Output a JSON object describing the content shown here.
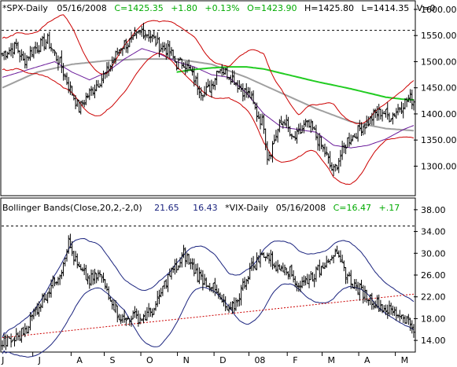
{
  "colors": {
    "price_bars": "#000000",
    "bollinger": "#cc0000",
    "ma_gray": "#a0a0a0",
    "ma_purple": "#6a1b9a",
    "ma_green": "#22cc22",
    "vix_band": "#1a237e",
    "green_text": "#00aa00",
    "dotted_red": "#cc0000",
    "frame": "#000000"
  },
  "top_header": {
    "symbol": "*SPX-Daily",
    "date": "05/16/2008",
    "close": "C=1425.35",
    "change": "+1.80",
    "pct": "+0.13%",
    "open": "O=1423.90",
    "high": "H=1425.80",
    "low": "L=1414.35",
    "volume": "V=0"
  },
  "bottom_header": {
    "indicator": "Bollinger Bands(Close,20,2,-2,0)",
    "upper_value": "21.65",
    "lower_value": "16.43",
    "symbol": "*VIX-Daily",
    "date": "05/16/2008",
    "close": "C=16.47",
    "change": "+.17"
  },
  "chart_data": [
    {
      "type": "ohlc",
      "title": "*SPX-Daily",
      "ylim": [
        1245,
        1615
      ],
      "y_ticks": [
        "1600.00",
        "1550.00",
        "1500.00",
        "1450.00",
        "1400.00",
        "1350.00",
        "1300.00"
      ],
      "y_tick_values": [
        1600,
        1550,
        1500,
        1450,
        1400,
        1350,
        1300
      ],
      "reference_line": 1560,
      "x_categories": [
        "J",
        "J",
        "A",
        "S",
        "O",
        "N",
        "D",
        "08",
        "F",
        "M",
        "A",
        "M"
      ],
      "x_positions": [
        0.5,
        21.5,
        43.5,
        62.5,
        83.5,
        104.5,
        125.5,
        145.5,
        167.5,
        187.5,
        208.5,
        229.5
      ],
      "close_anchors": [
        [
          0,
          1515
        ],
        [
          8,
          1530
        ],
        [
          12,
          1500
        ],
        [
          18,
          1525
        ],
        [
          26,
          1540
        ],
        [
          34,
          1490
        ],
        [
          38,
          1455
        ],
        [
          44,
          1410
        ],
        [
          50,
          1440
        ],
        [
          56,
          1465
        ],
        [
          60,
          1480
        ],
        [
          68,
          1530
        ],
        [
          75,
          1540
        ],
        [
          80,
          1560
        ],
        [
          85,
          1550
        ],
        [
          90,
          1530
        ],
        [
          96,
          1520
        ],
        [
          100,
          1495
        ],
        [
          104,
          1500
        ],
        [
          108,
          1480
        ],
        [
          112,
          1455
        ],
        [
          116,
          1440
        ],
        [
          120,
          1455
        ],
        [
          124,
          1490
        ],
        [
          128,
          1480
        ],
        [
          132,
          1470
        ],
        [
          138,
          1445
        ],
        [
          142,
          1435
        ],
        [
          146,
          1400
        ],
        [
          150,
          1380
        ],
        [
          152,
          1320
        ],
        [
          154,
          1330
        ],
        [
          158,
          1370
        ],
        [
          162,
          1390
        ],
        [
          166,
          1350
        ],
        [
          170,
          1360
        ],
        [
          174,
          1380
        ],
        [
          178,
          1370
        ],
        [
          182,
          1345
        ],
        [
          186,
          1320
        ],
        [
          188,
          1300
        ],
        [
          190,
          1290
        ],
        [
          194,
          1320
        ],
        [
          198,
          1350
        ],
        [
          202,
          1360
        ],
        [
          206,
          1375
        ],
        [
          210,
          1385
        ],
        [
          214,
          1400
        ],
        [
          218,
          1405
        ],
        [
          222,
          1395
        ],
        [
          226,
          1405
        ],
        [
          230,
          1420
        ],
        [
          234,
          1430
        ],
        [
          236,
          1425
        ]
      ],
      "series": [
        {
          "name": "",
          "style": "ohlc",
          "color": "#000000"
        },
        {
          "name": "",
          "style": "bollinger",
          "color": "#cc0000"
        },
        {
          "name": "",
          "style": "line",
          "color": "#a0a0a0"
        },
        {
          "name": "",
          "style": "line",
          "color": "#6a1b9a"
        },
        {
          "name": "",
          "style": "line",
          "color": "#22cc22"
        }
      ],
      "ma_gray_anchors": [
        [
          0,
          1450
        ],
        [
          10,
          1465
        ],
        [
          20,
          1480
        ],
        [
          40,
          1495
        ],
        [
          60,
          1502
        ],
        [
          80,
          1505
        ],
        [
          100,
          1505
        ],
        [
          120,
          1495
        ],
        [
          140,
          1470
        ],
        [
          160,
          1440
        ],
        [
          180,
          1410
        ],
        [
          200,
          1385
        ],
        [
          220,
          1372
        ],
        [
          236,
          1368
        ]
      ],
      "ma_purple_anchors": [
        [
          0,
          1470
        ],
        [
          20,
          1490
        ],
        [
          30,
          1500
        ],
        [
          40,
          1480
        ],
        [
          50,
          1465
        ],
        [
          60,
          1480
        ],
        [
          70,
          1505
        ],
        [
          80,
          1525
        ],
        [
          90,
          1515
        ],
        [
          100,
          1500
        ],
        [
          110,
          1490
        ],
        [
          120,
          1475
        ],
        [
          130,
          1470
        ],
        [
          140,
          1440
        ],
        [
          150,
          1400
        ],
        [
          160,
          1375
        ],
        [
          170,
          1370
        ],
        [
          180,
          1365
        ],
        [
          190,
          1340
        ],
        [
          200,
          1335
        ],
        [
          210,
          1340
        ],
        [
          220,
          1352
        ],
        [
          230,
          1370
        ],
        [
          236,
          1378
        ]
      ],
      "ma_green_anchors": [
        [
          100,
          1480
        ],
        [
          110,
          1485
        ],
        [
          120,
          1488
        ],
        [
          130,
          1490
        ],
        [
          140,
          1490
        ],
        [
          150,
          1486
        ],
        [
          160,
          1478
        ],
        [
          170,
          1470
        ],
        [
          180,
          1462
        ],
        [
          190,
          1455
        ],
        [
          200,
          1448
        ],
        [
          210,
          1440
        ],
        [
          220,
          1432
        ],
        [
          230,
          1428
        ],
        [
          236,
          1427
        ]
      ],
      "band_width_anchors": [
        [
          0,
          30
        ],
        [
          20,
          40
        ],
        [
          35,
          70
        ],
        [
          45,
          55
        ],
        [
          60,
          35
        ],
        [
          70,
          45
        ],
        [
          80,
          40
        ],
        [
          90,
          30
        ],
        [
          100,
          40
        ],
        [
          110,
          45
        ],
        [
          120,
          35
        ],
        [
          130,
          30
        ],
        [
          140,
          55
        ],
        [
          150,
          85
        ],
        [
          160,
          70
        ],
        [
          170,
          40
        ],
        [
          180,
          45
        ],
        [
          190,
          70
        ],
        [
          200,
          60
        ],
        [
          210,
          40
        ],
        [
          220,
          35
        ],
        [
          230,
          45
        ],
        [
          236,
          55
        ]
      ]
    },
    {
      "type": "ohlc",
      "title": "*VIX-Daily",
      "ylim": [
        12,
        40
      ],
      "y_ticks": [
        "38.00",
        "34.00",
        "30.00",
        "26.00",
        "22.00",
        "18.00",
        "14.00"
      ],
      "y_tick_values": [
        38,
        34,
        30,
        26,
        22,
        18,
        14
      ],
      "reference_line": 35,
      "close_anchors": [
        [
          0,
          13.5
        ],
        [
          6,
          14
        ],
        [
          10,
          15
        ],
        [
          14,
          16.5
        ],
        [
          18,
          19
        ],
        [
          22,
          21
        ],
        [
          26,
          23
        ],
        [
          30,
          25
        ],
        [
          34,
          27
        ],
        [
          36,
          30
        ],
        [
          38,
          32
        ],
        [
          40,
          30
        ],
        [
          44,
          27
        ],
        [
          50,
          25
        ],
        [
          56,
          26
        ],
        [
          62,
          22
        ],
        [
          66,
          19
        ],
        [
          70,
          17.5
        ],
        [
          74,
          18.5
        ],
        [
          80,
          18
        ],
        [
          84,
          19
        ],
        [
          88,
          20
        ],
        [
          90,
          22
        ],
        [
          94,
          25
        ],
        [
          98,
          27
        ],
        [
          102,
          28
        ],
        [
          104,
          30
        ],
        [
          108,
          28
        ],
        [
          112,
          26
        ],
        [
          116,
          25
        ],
        [
          120,
          24
        ],
        [
          124,
          22
        ],
        [
          128,
          20
        ],
        [
          130,
          19
        ],
        [
          134,
          21
        ],
        [
          138,
          24
        ],
        [
          142,
          27
        ],
        [
          146,
          28.5
        ],
        [
          150,
          30
        ],
        [
          154,
          29
        ],
        [
          158,
          27
        ],
        [
          162,
          28
        ],
        [
          166,
          26
        ],
        [
          170,
          24
        ],
        [
          174,
          25
        ],
        [
          178,
          26
        ],
        [
          182,
          27
        ],
        [
          186,
          29
        ],
        [
          190,
          30
        ],
        [
          194,
          28
        ],
        [
          198,
          26
        ],
        [
          202,
          24
        ],
        [
          206,
          23
        ],
        [
          210,
          22
        ],
        [
          214,
          21
        ],
        [
          218,
          20
        ],
        [
          222,
          19.5
        ],
        [
          226,
          19
        ],
        [
          230,
          18.5
        ],
        [
          234,
          17
        ],
        [
          236,
          16.5
        ]
      ],
      "series": [
        {
          "name": "",
          "style": "ohlc",
          "color": "#000000"
        },
        {
          "name": "",
          "style": "bollinger",
          "color": "#1a237e"
        },
        {
          "name": "",
          "style": "dotted-trend",
          "color": "#cc0000"
        }
      ],
      "trend_line": [
        [
          0,
          14.5
        ],
        [
          236,
          22.5
        ]
      ],
      "band_width_anchors": [
        [
          0,
          1.5
        ],
        [
          10,
          3.0
        ],
        [
          20,
          4.5
        ],
        [
          30,
          6.0
        ],
        [
          40,
          6.5
        ],
        [
          50,
          4.5
        ],
        [
          60,
          3.5
        ],
        [
          70,
          2.8
        ],
        [
          80,
          4.5
        ],
        [
          90,
          6.0
        ],
        [
          100,
          5.5
        ],
        [
          110,
          4.0
        ],
        [
          120,
          3.5
        ],
        [
          130,
          3.0
        ],
        [
          140,
          5.0
        ],
        [
          150,
          5.5
        ],
        [
          160,
          4.0
        ],
        [
          170,
          3.5
        ],
        [
          180,
          4.5
        ],
        [
          190,
          5.0
        ],
        [
          200,
          4.0
        ],
        [
          210,
          3.0
        ],
        [
          220,
          2.8
        ],
        [
          230,
          2.7
        ],
        [
          236,
          2.6
        ]
      ]
    }
  ]
}
